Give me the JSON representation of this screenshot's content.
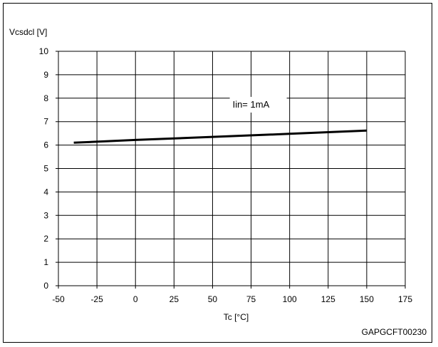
{
  "chart_data": {
    "type": "line",
    "title": "",
    "ylabel": "Vcsdcl [V]",
    "xlabel": "Tc [°C]",
    "x_ticks": [
      -50,
      -25,
      0,
      25,
      50,
      75,
      100,
      125,
      150,
      175
    ],
    "y_ticks": [
      0,
      1,
      2,
      3,
      4,
      5,
      6,
      7,
      8,
      9,
      10
    ],
    "xlim": [
      -50,
      175
    ],
    "ylim": [
      0,
      10
    ],
    "grid": true,
    "series": [
      {
        "name": "Iin= 1mA",
        "x": [
          -40,
          0,
          50,
          100,
          150
        ],
        "y": [
          6.1,
          6.22,
          6.35,
          6.48,
          6.62
        ]
      }
    ],
    "annotation": "Iin= 1mA",
    "footer_code": "GAPGCFT00230",
    "colors": {
      "line": "#000000",
      "grid": "#000000",
      "background": "#ffffff"
    }
  }
}
